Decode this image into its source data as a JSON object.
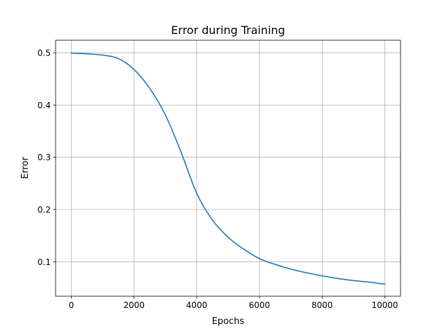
{
  "chart_data": {
    "type": "line",
    "title": "Error during Training",
    "xlabel": "Epochs",
    "ylabel": "Error",
    "xlim": [
      -500,
      10500
    ],
    "ylim": [
      0.034,
      0.524
    ],
    "xticks": [
      0,
      2000,
      4000,
      6000,
      8000,
      10000
    ],
    "xtick_labels": [
      "0",
      "2000",
      "4000",
      "6000",
      "8000",
      "10000"
    ],
    "yticks": [
      0.1,
      0.2,
      0.3,
      0.4,
      0.5
    ],
    "ytick_labels": [
      "0.1",
      "0.2",
      "0.3",
      "0.4",
      "0.5"
    ],
    "grid": true,
    "series": [
      {
        "color": "#1f77b4",
        "x": [
          0,
          500,
          1000,
          1500,
          2000,
          2500,
          3000,
          3500,
          4000,
          4500,
          5000,
          5500,
          6000,
          6500,
          7000,
          7500,
          8000,
          8500,
          9000,
          9500,
          10000
        ],
        "y": [
          0.4995,
          0.498,
          0.4955,
          0.489,
          0.468,
          0.432,
          0.381,
          0.31,
          0.231,
          0.18,
          0.147,
          0.124,
          0.106,
          0.095,
          0.086,
          0.079,
          0.073,
          0.068,
          0.064,
          0.061,
          0.057
        ]
      }
    ]
  }
}
